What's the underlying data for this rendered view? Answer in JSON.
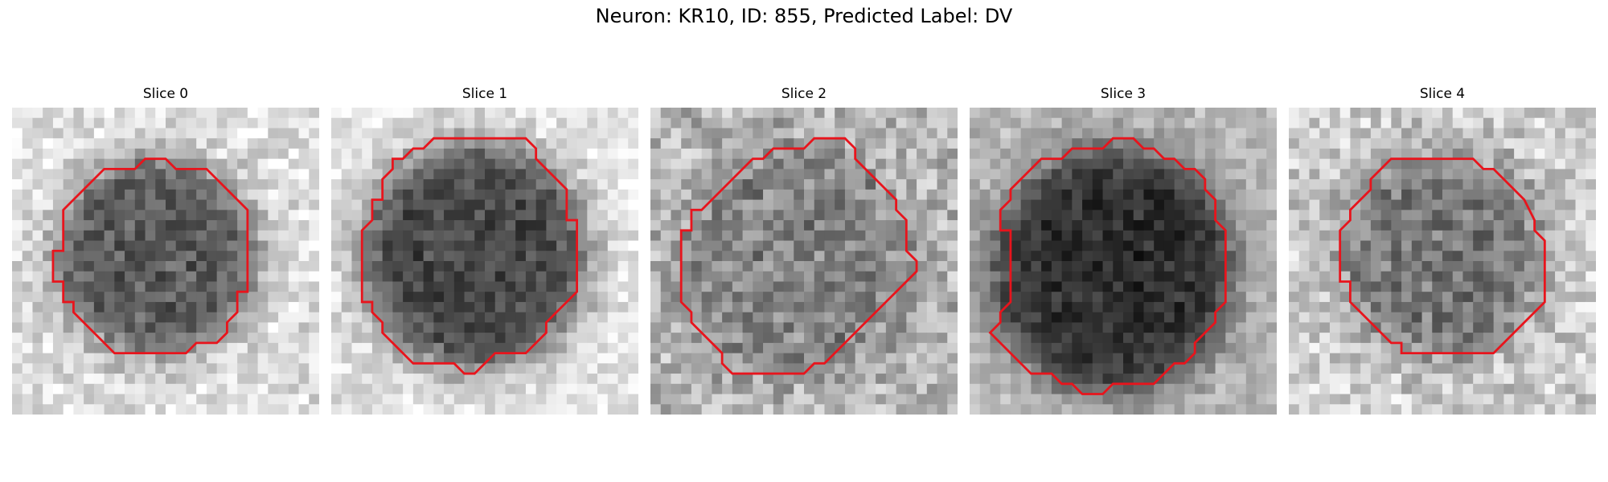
{
  "figure": {
    "title": "Neuron: KR10, ID: 855, Predicted Label: DV"
  },
  "panels": [
    {
      "title": "Slice 0",
      "contour": [
        [
          15,
          5
        ],
        [
          13,
          5
        ],
        [
          12,
          6
        ],
        [
          9,
          6
        ],
        [
          5,
          10
        ],
        [
          5,
          14
        ],
        [
          4,
          14
        ],
        [
          4,
          17
        ],
        [
          5,
          17
        ],
        [
          5,
          19
        ],
        [
          6,
          19
        ],
        [
          6,
          20
        ],
        [
          8,
          22
        ],
        [
          9,
          23
        ],
        [
          10,
          24
        ],
        [
          17,
          24
        ],
        [
          18,
          23
        ],
        [
          20,
          23
        ],
        [
          21,
          22
        ],
        [
          21,
          21
        ],
        [
          22,
          20
        ],
        [
          22,
          18
        ],
        [
          23,
          18
        ],
        [
          23,
          10
        ],
        [
          19,
          6
        ],
        [
          16,
          6
        ]
      ],
      "bg": 0.88,
      "fg": 0.35,
      "cx": 14,
      "cy": 14.5,
      "r": 9.8,
      "spread": 0.08,
      "noise": 0.26
    },
    {
      "title": "Slice 1",
      "contour": [
        [
          17,
          3
        ],
        [
          10,
          3
        ],
        [
          9,
          4
        ],
        [
          8,
          4
        ],
        [
          7,
          5
        ],
        [
          6,
          5
        ],
        [
          6,
          6
        ],
        [
          5,
          7
        ],
        [
          5,
          9
        ],
        [
          4,
          9
        ],
        [
          4,
          11
        ],
        [
          3,
          12
        ],
        [
          3,
          19
        ],
        [
          4,
          19
        ],
        [
          4,
          20
        ],
        [
          5,
          21
        ],
        [
          5,
          22
        ],
        [
          6,
          23
        ],
        [
          7,
          24
        ],
        [
          8,
          25
        ],
        [
          12,
          25
        ],
        [
          13,
          26
        ],
        [
          14,
          26
        ],
        [
          15,
          25
        ],
        [
          16,
          24
        ],
        [
          19,
          24
        ],
        [
          20,
          23
        ],
        [
          21,
          22
        ],
        [
          21,
          21
        ],
        [
          22,
          20
        ],
        [
          23,
          19
        ],
        [
          24,
          18
        ],
        [
          24,
          11
        ],
        [
          23,
          11
        ],
        [
          23,
          8
        ],
        [
          22,
          7
        ],
        [
          21,
          6
        ],
        [
          20,
          5
        ],
        [
          20,
          4
        ],
        [
          19,
          3
        ],
        [
          18,
          3
        ]
      ],
      "bg": 0.9,
      "fg": 0.28,
      "cx": 14,
      "cy": 14.5,
      "r": 11.2,
      "spread": 0.07,
      "noise": 0.22
    },
    {
      "title": "Slice 2",
      "contour": [
        [
          17,
          3
        ],
        [
          16,
          3
        ],
        [
          15,
          4
        ],
        [
          12,
          4
        ],
        [
          11,
          5
        ],
        [
          10,
          5
        ],
        [
          9,
          6
        ],
        [
          8,
          7
        ],
        [
          7,
          8
        ],
        [
          6,
          9
        ],
        [
          5,
          10
        ],
        [
          4,
          10
        ],
        [
          4,
          12
        ],
        [
          3,
          12
        ],
        [
          3,
          19
        ],
        [
          4,
          20
        ],
        [
          4,
          21
        ],
        [
          5,
          22
        ],
        [
          6,
          23
        ],
        [
          7,
          24
        ],
        [
          7,
          25
        ],
        [
          8,
          26
        ],
        [
          15,
          26
        ],
        [
          16,
          25
        ],
        [
          17,
          25
        ],
        [
          18,
          24
        ],
        [
          19,
          23
        ],
        [
          20,
          22
        ],
        [
          21,
          21
        ],
        [
          22,
          20
        ],
        [
          23,
          19
        ],
        [
          24,
          18
        ],
        [
          25,
          17
        ],
        [
          26,
          16
        ],
        [
          26,
          15
        ],
        [
          25,
          14
        ],
        [
          25,
          11
        ],
        [
          24,
          10
        ],
        [
          24,
          9
        ],
        [
          23,
          8
        ],
        [
          22,
          7
        ],
        [
          21,
          6
        ],
        [
          20,
          5
        ],
        [
          20,
          4
        ],
        [
          19,
          3
        ]
      ],
      "bg": 0.72,
      "fg": 0.52,
      "cx": 14.5,
      "cy": 15,
      "r": 11.5,
      "spread": 0.1,
      "noise": 0.32
    },
    {
      "title": "Slice 3",
      "contour": [
        [
          16,
          3
        ],
        [
          14,
          3
        ],
        [
          13,
          4
        ],
        [
          10,
          4
        ],
        [
          9,
          5
        ],
        [
          7,
          5
        ],
        [
          6,
          6
        ],
        [
          5,
          7
        ],
        [
          4,
          8
        ],
        [
          4,
          9
        ],
        [
          3,
          10
        ],
        [
          3,
          12
        ],
        [
          4,
          12
        ],
        [
          4,
          19
        ],
        [
          3,
          20
        ],
        [
          3,
          21
        ],
        [
          2,
          22
        ],
        [
          3,
          23
        ],
        [
          4,
          24
        ],
        [
          5,
          25
        ],
        [
          6,
          26
        ],
        [
          8,
          26
        ],
        [
          9,
          27
        ],
        [
          10,
          27
        ],
        [
          11,
          28
        ],
        [
          12,
          28
        ],
        [
          13,
          28
        ],
        [
          14,
          27
        ],
        [
          15,
          27
        ],
        [
          16,
          27
        ],
        [
          18,
          27
        ],
        [
          19,
          26
        ],
        [
          20,
          25
        ],
        [
          21,
          25
        ],
        [
          22,
          24
        ],
        [
          22,
          23
        ],
        [
          23,
          22
        ],
        [
          24,
          21
        ],
        [
          24,
          20
        ],
        [
          25,
          19
        ],
        [
          25,
          12
        ],
        [
          24,
          11
        ],
        [
          24,
          9
        ],
        [
          23,
          8
        ],
        [
          23,
          7
        ],
        [
          22,
          6
        ],
        [
          21,
          6
        ],
        [
          20,
          5
        ],
        [
          19,
          5
        ],
        [
          18,
          4
        ],
        [
          17,
          4
        ],
        [
          16,
          3
        ]
      ],
      "bg": 0.72,
      "fg": 0.18,
      "cx": 14,
      "cy": 16,
      "r": 12.0,
      "spread": 0.07,
      "noise": 0.2
    },
    {
      "title": "Slice 4",
      "contour": [
        [
          16,
          5
        ],
        [
          10,
          5
        ],
        [
          9,
          6
        ],
        [
          8,
          7
        ],
        [
          8,
          8
        ],
        [
          7,
          9
        ],
        [
          6,
          10
        ],
        [
          6,
          11
        ],
        [
          5,
          12
        ],
        [
          5,
          17
        ],
        [
          6,
          17
        ],
        [
          6,
          19
        ],
        [
          7,
          20
        ],
        [
          8,
          21
        ],
        [
          9,
          22
        ],
        [
          10,
          23
        ],
        [
          11,
          23
        ],
        [
          11,
          24
        ],
        [
          16,
          24
        ],
        [
          17,
          24
        ],
        [
          18,
          24
        ],
        [
          20,
          24
        ],
        [
          21,
          23
        ],
        [
          22,
          22
        ],
        [
          23,
          21
        ],
        [
          24,
          20
        ],
        [
          25,
          19
        ],
        [
          25,
          15
        ],
        [
          25,
          13
        ],
        [
          24,
          12
        ],
        [
          24,
          11
        ],
        [
          23,
          9
        ],
        [
          22,
          8
        ],
        [
          21,
          7
        ],
        [
          20,
          6
        ],
        [
          19,
          6
        ],
        [
          18,
          5
        ]
      ],
      "bg": 0.8,
      "fg": 0.46,
      "cx": 15,
      "cy": 14.5,
      "r": 10.2,
      "spread": 0.09,
      "noise": 0.3
    }
  ]
}
